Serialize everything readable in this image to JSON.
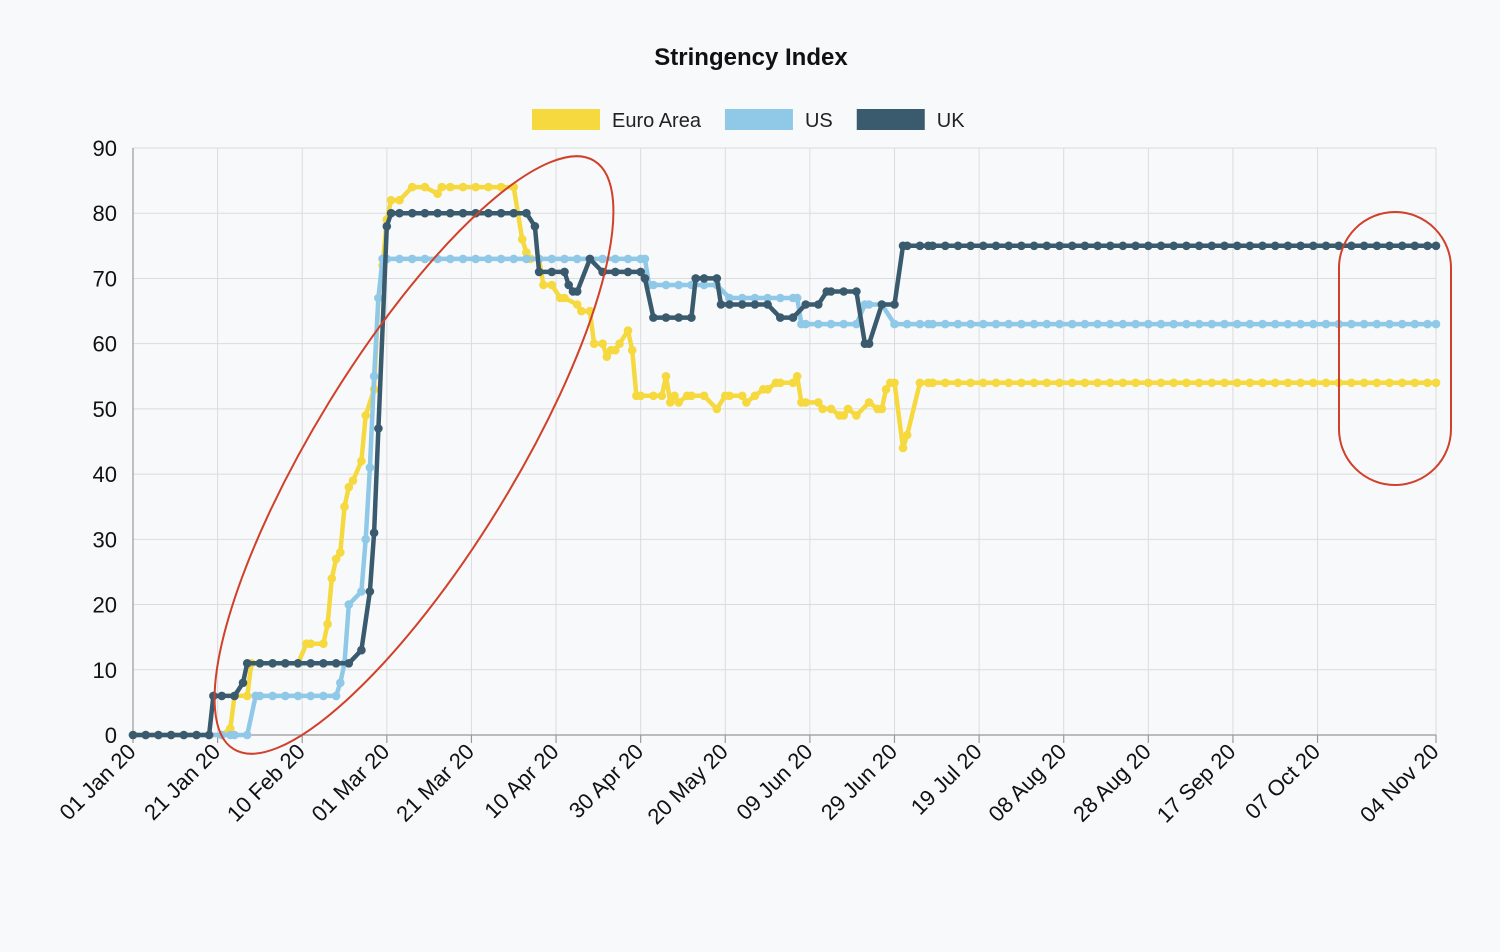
{
  "chart_data": {
    "type": "line",
    "title": "Stringency Index",
    "xlabel": "",
    "ylabel": "",
    "ylim": [
      0,
      90
    ],
    "yticks": [
      0,
      10,
      20,
      30,
      40,
      50,
      60,
      70,
      80,
      90
    ],
    "grid": true,
    "legend_position": "top",
    "x_tick_labels": [
      "01 Jan 20",
      "21 Jan 20",
      "10 Feb 20",
      "01 Mar 20",
      "21 Mar 20",
      "10 Apr 20",
      "30 Apr 20",
      "20 May 20",
      "09 Jun 20",
      "29 Jun 20",
      "19 Jul 20",
      "08 Aug 20",
      "28 Aug 20",
      "17 Sep 20",
      "07 Oct 20",
      "04 Nov 20"
    ],
    "x_start": "2020-01-01",
    "x_end": "2020-11-04",
    "series": [
      {
        "name": "Euro Area",
        "color": "#f5d93f",
        "steps": [
          [
            "2020-01-01",
            0
          ],
          [
            "2020-01-24",
            1
          ],
          [
            "2020-01-25",
            6
          ],
          [
            "2020-01-29",
            11
          ],
          [
            "2020-02-11",
            14
          ],
          [
            "2020-02-16",
            17
          ],
          [
            "2020-02-17",
            24
          ],
          [
            "2020-02-18",
            27
          ],
          [
            "2020-02-19",
            28
          ],
          [
            "2020-02-20",
            35
          ],
          [
            "2020-02-21",
            38
          ],
          [
            "2020-02-22",
            39
          ],
          [
            "2020-02-24",
            42
          ],
          [
            "2020-02-25",
            49
          ],
          [
            "2020-02-27",
            53
          ],
          [
            "2020-02-28",
            67
          ],
          [
            "2020-02-29",
            72
          ],
          [
            "2020-03-01",
            79
          ],
          [
            "2020-03-02",
            82
          ],
          [
            "2020-03-07",
            84
          ],
          [
            "2020-03-13",
            83
          ],
          [
            "2020-03-14",
            84
          ],
          [
            "2020-04-02",
            76
          ],
          [
            "2020-04-03",
            74
          ],
          [
            "2020-04-04",
            73
          ],
          [
            "2020-04-07",
            69
          ],
          [
            "2020-04-11",
            67
          ],
          [
            "2020-04-15",
            66
          ],
          [
            "2020-04-16",
            65
          ],
          [
            "2020-04-19",
            60
          ],
          [
            "2020-04-22",
            58
          ],
          [
            "2020-04-23",
            59
          ],
          [
            "2020-04-25",
            60
          ],
          [
            "2020-04-27",
            62
          ],
          [
            "2020-04-28",
            59
          ],
          [
            "2020-04-29",
            52
          ],
          [
            "2020-05-05",
            52
          ],
          [
            "2020-05-06",
            55
          ],
          [
            "2020-05-07",
            51
          ],
          [
            "2020-05-08",
            52
          ],
          [
            "2020-05-09",
            51
          ],
          [
            "2020-05-11",
            52
          ],
          [
            "2020-05-18",
            50
          ],
          [
            "2020-05-20",
            52
          ],
          [
            "2020-05-25",
            51
          ],
          [
            "2020-05-27",
            52
          ],
          [
            "2020-05-29",
            53
          ],
          [
            "2020-06-01",
            54
          ],
          [
            "2020-06-06",
            55
          ],
          [
            "2020-06-07",
            51
          ],
          [
            "2020-06-12",
            50
          ],
          [
            "2020-06-16",
            49
          ],
          [
            "2020-06-18",
            50
          ],
          [
            "2020-06-20",
            49
          ],
          [
            "2020-06-23",
            51
          ],
          [
            "2020-06-25",
            50
          ],
          [
            "2020-06-27",
            53
          ],
          [
            "2020-06-28",
            54
          ],
          [
            "2020-07-01",
            44
          ],
          [
            "2020-07-02",
            46
          ],
          [
            "2020-07-05",
            54
          ],
          [
            "2020-07-07",
            54
          ]
        ]
      },
      {
        "name": "US",
        "color": "#90c8e8",
        "steps": [
          [
            "2020-01-01",
            0
          ],
          [
            "2020-01-24",
            0
          ],
          [
            "2020-01-30",
            6
          ],
          [
            "2020-02-19",
            8
          ],
          [
            "2020-02-20",
            11
          ],
          [
            "2020-02-21",
            20
          ],
          [
            "2020-02-24",
            22
          ],
          [
            "2020-02-25",
            30
          ],
          [
            "2020-02-26",
            41
          ],
          [
            "2020-02-27",
            55
          ],
          [
            "2020-02-28",
            67
          ],
          [
            "2020-02-29",
            73
          ],
          [
            "2020-05-01",
            73
          ],
          [
            "2020-05-02",
            69
          ],
          [
            "2020-05-21",
            67
          ],
          [
            "2020-06-06",
            67
          ],
          [
            "2020-06-07",
            63
          ],
          [
            "2020-06-22",
            66
          ],
          [
            "2020-06-29",
            63
          ],
          [
            "2020-07-07",
            63
          ]
        ]
      },
      {
        "name": "UK",
        "color": "#3a5a6e",
        "steps": [
          [
            "2020-01-01",
            0
          ],
          [
            "2020-01-20",
            6
          ],
          [
            "2020-01-27",
            8
          ],
          [
            "2020-01-28",
            11
          ],
          [
            "2020-02-24",
            13
          ],
          [
            "2020-02-26",
            22
          ],
          [
            "2020-02-27",
            31
          ],
          [
            "2020-02-28",
            47
          ],
          [
            "2020-03-01",
            78
          ],
          [
            "2020-03-02",
            80
          ],
          [
            "2020-04-05",
            78
          ],
          [
            "2020-04-06",
            71
          ],
          [
            "2020-04-13",
            69
          ],
          [
            "2020-04-14",
            68
          ],
          [
            "2020-04-18",
            73
          ],
          [
            "2020-04-21",
            71
          ],
          [
            "2020-05-01",
            70
          ],
          [
            "2020-05-03",
            64
          ],
          [
            "2020-05-13",
            70
          ],
          [
            "2020-05-19",
            66
          ],
          [
            "2020-06-02",
            64
          ],
          [
            "2020-06-08",
            66
          ],
          [
            "2020-06-13",
            68
          ],
          [
            "2020-06-22",
            60
          ],
          [
            "2020-06-26",
            66
          ],
          [
            "2020-07-01",
            75
          ],
          [
            "2020-07-07",
            75
          ]
        ]
      }
    ],
    "annotations": [
      {
        "type": "ellipse",
        "color": "#d0402a",
        "label": ""
      },
      {
        "type": "rounded-rect",
        "color": "#d0402a",
        "label": ""
      }
    ]
  }
}
